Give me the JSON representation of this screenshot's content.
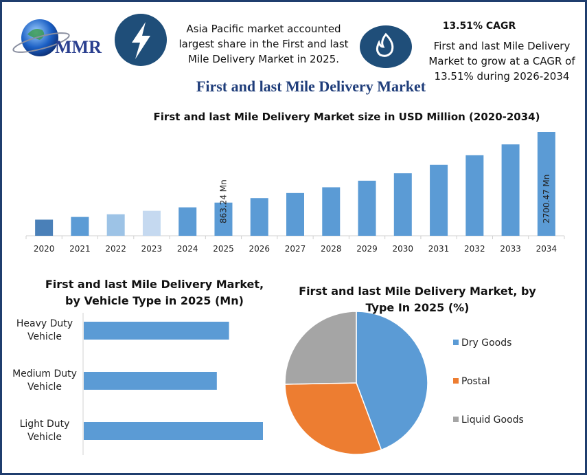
{
  "header": {
    "logo_text": "MMR",
    "share_text": "Asia Pacific market accounted largest share in the First and last Mile Delivery Market in 2025.",
    "cagr_title": "13.51% CAGR",
    "cagr_text": "First and last Mile Delivery Market to grow at a CAGR of 13.51% during 2026-2034",
    "title": "First and last Mile Delivery Market"
  },
  "chart_data": [
    {
      "type": "bar",
      "title": "First and last Mile Delivery Market size in USD Million (2020-2034)",
      "categories": [
        "2020",
        "2021",
        "2022",
        "2023",
        "2024",
        "2025",
        "2026",
        "2027",
        "2028",
        "2029",
        "2030",
        "2031",
        "2032",
        "2033",
        "2034"
      ],
      "values": [
        420,
        490,
        560,
        650,
        740,
        863.24,
        980,
        1112,
        1262,
        1433,
        1626,
        1846,
        2095,
        2378,
        2700.47
      ],
      "value_labels": [
        null,
        null,
        null,
        null,
        null,
        "863.24 Mn",
        null,
        null,
        null,
        null,
        null,
        null,
        null,
        null,
        "2700.47 Mn"
      ],
      "colors": [
        "#4a80b8",
        "#5b9bd5",
        "#9dc3e6",
        "#c5d9f0",
        "#5b9bd5",
        "#5b9bd5",
        "#5b9bd5",
        "#5b9bd5",
        "#5b9bd5",
        "#5b9bd5",
        "#5b9bd5",
        "#5b9bd5",
        "#5b9bd5",
        "#5b9bd5",
        "#5b9bd5"
      ]
    },
    {
      "type": "bar",
      "orientation": "horizontal",
      "title": "First and last Mile Delivery Market, by Vehicle Type in 2025 (Mn)",
      "categories": [
        "Heavy Duty Vehicle",
        "Medium Duty Vehicle",
        "Light Duty Vehicle"
      ],
      "values": [
        274,
        251,
        338
      ],
      "color": "#5b9bd5"
    },
    {
      "type": "pie",
      "title": "First and last Mile Delivery Market, by Type In 2025 (%)",
      "categories": [
        "Dry Goods",
        "Postal",
        "Liquid Goods"
      ],
      "values": [
        44.3,
        30.4,
        25.3
      ],
      "colors": [
        "#5b9bd5",
        "#ed7d31",
        "#a5a5a5"
      ],
      "legend": "right"
    }
  ]
}
